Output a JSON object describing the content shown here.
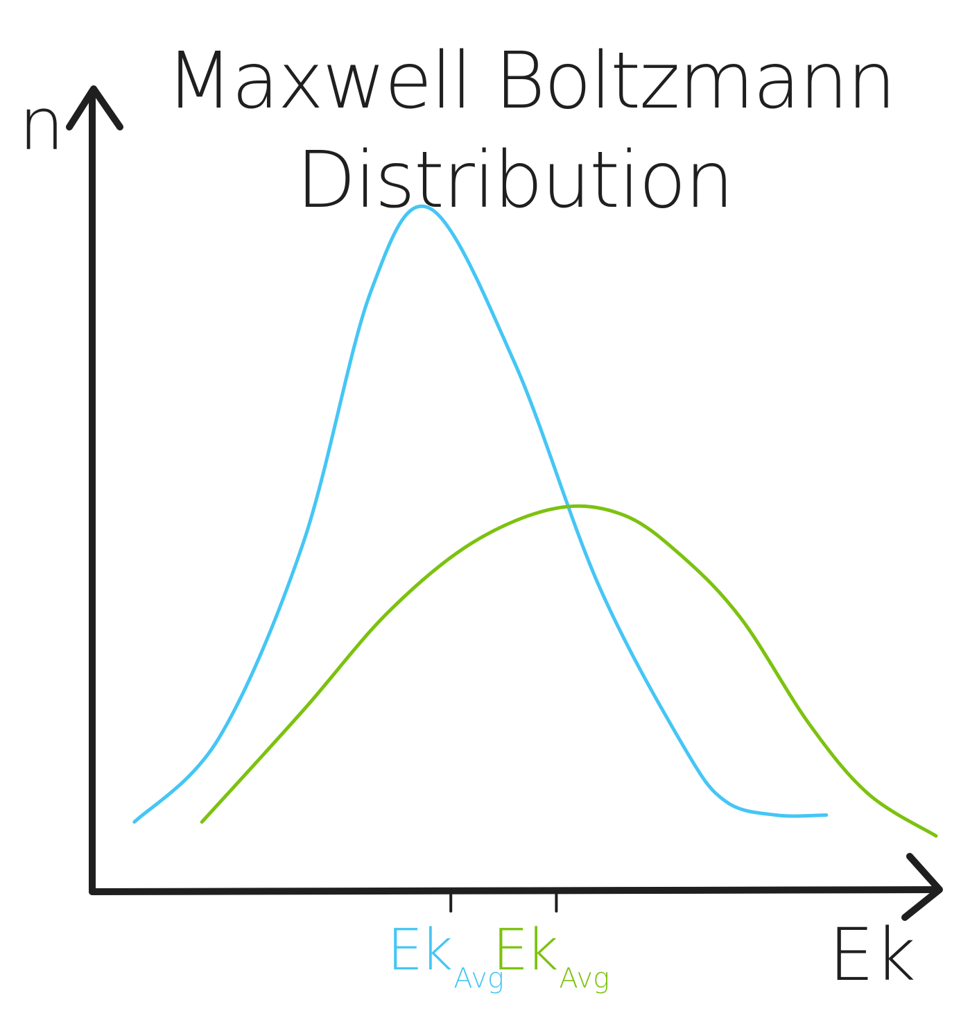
{
  "chart_data": {
    "type": "line",
    "title_line1": "Maxwell Boltzmann",
    "title_line2": "Distribution",
    "ylabel": "n",
    "xlabel": "Ek",
    "xlim": [
      0,
      10
    ],
    "ylim": [
      0,
      10
    ],
    "grid": false,
    "series": [
      {
        "color": "#45c6f5",
        "x": [
          0.5,
          1.5,
          2.5,
          3.3,
          4.0,
          5.0,
          6.0,
          7.0,
          7.5,
          8.1,
          8.7
        ],
        "y": [
          1.0,
          2.2,
          5.0,
          8.6,
          9.8,
          7.6,
          4.4,
          2.1,
          1.3,
          1.1,
          1.1
        ]
      },
      {
        "color": "#7cc20f",
        "x": [
          1.3,
          2.5,
          3.5,
          4.5,
          5.5,
          6.3,
          7.0,
          7.7,
          8.5,
          9.2,
          10.0
        ],
        "y": [
          1.0,
          2.6,
          4.0,
          5.0,
          5.5,
          5.4,
          4.8,
          3.9,
          2.4,
          1.4,
          0.8
        ]
      }
    ],
    "x_ticks": [
      {
        "x": 4.25,
        "main": "Ek",
        "sub": "Avg",
        "color": "#45c6f5"
      },
      {
        "x": 5.5,
        "main": "Ek",
        "sub": "Avg",
        "color": "#7cc20f"
      }
    ]
  }
}
